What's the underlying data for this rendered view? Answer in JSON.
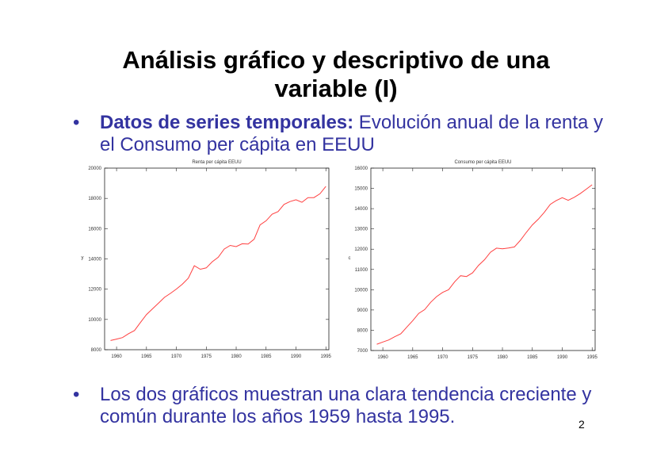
{
  "title_line1": "Análisis gráfico y descriptivo de una",
  "title_line2": "variable (I)",
  "bullet1": {
    "bold": "Datos de series temporales:",
    "text": " Evolución anual de la renta y el Consumo per cápita en EEUU"
  },
  "bullet2": "Los dos gráficos muestran una clara tendencia creciente y común durante los años 1959 hasta 1995.",
  "page_number": "2",
  "bullet_symbol": "•",
  "line_color": "#ff4040",
  "chart_data": [
    {
      "type": "line",
      "title": "Renta per cápita EEUU",
      "xlabel": "",
      "ylabel": "y",
      "xlim": [
        1958,
        1995.5
      ],
      "ylim": [
        8000,
        20000
      ],
      "xticks": [
        1960,
        1965,
        1970,
        1975,
        1980,
        1985,
        1990,
        1995
      ],
      "xtick_labels": [
        "1960",
        "1965",
        "1970",
        "1975",
        "1980",
        "1985",
        "1990",
        "1995"
      ],
      "yticks": [
        8000,
        10000,
        12000,
        14000,
        16000,
        18000,
        20000
      ],
      "ytick_labels": [
        "8000",
        "10000",
        "12000",
        "14000",
        "16000",
        "18000",
        "20000"
      ],
      "x_start": 1959,
      "values": [
        8610,
        8700,
        8800,
        9060,
        9270,
        9800,
        10320,
        10700,
        11070,
        11460,
        11720,
        12010,
        12330,
        12730,
        13550,
        13320,
        13410,
        13810,
        14110,
        14650,
        14890,
        14810,
        15000,
        14980,
        15300,
        16250,
        16520,
        16950,
        17130,
        17600,
        17790,
        17910,
        17740,
        18050,
        18050,
        18300,
        18790
      ]
    },
    {
      "type": "line",
      "title": "Consumo per cápita EEUU",
      "xlabel": "",
      "ylabel": "c",
      "xlim": [
        1958,
        1995.5
      ],
      "ylim": [
        7000,
        16000
      ],
      "xticks": [
        1960,
        1965,
        1970,
        1975,
        1980,
        1985,
        1990,
        1995
      ],
      "xtick_labels": [
        "1960",
        "1965",
        "1970",
        "1975",
        "1980",
        "1985",
        "1990",
        "1995"
      ],
      "yticks": [
        7000,
        8000,
        9000,
        10000,
        11000,
        12000,
        13000,
        14000,
        15000,
        16000
      ],
      "ytick_labels": [
        "7000",
        "8000",
        "9000",
        "10000",
        "11000",
        "12000",
        "13000",
        "14000",
        "15000",
        "16000"
      ],
      "x_start": 1959,
      "values": [
        7310,
        7420,
        7520,
        7680,
        7820,
        8150,
        8470,
        8830,
        9020,
        9380,
        9660,
        9870,
        10000,
        10390,
        10690,
        10650,
        10830,
        11200,
        11480,
        11850,
        12050,
        12020,
        12060,
        12110,
        12440,
        12830,
        13200,
        13480,
        13820,
        14210,
        14400,
        14540,
        14410,
        14560,
        14740,
        14960,
        15180
      ]
    }
  ]
}
